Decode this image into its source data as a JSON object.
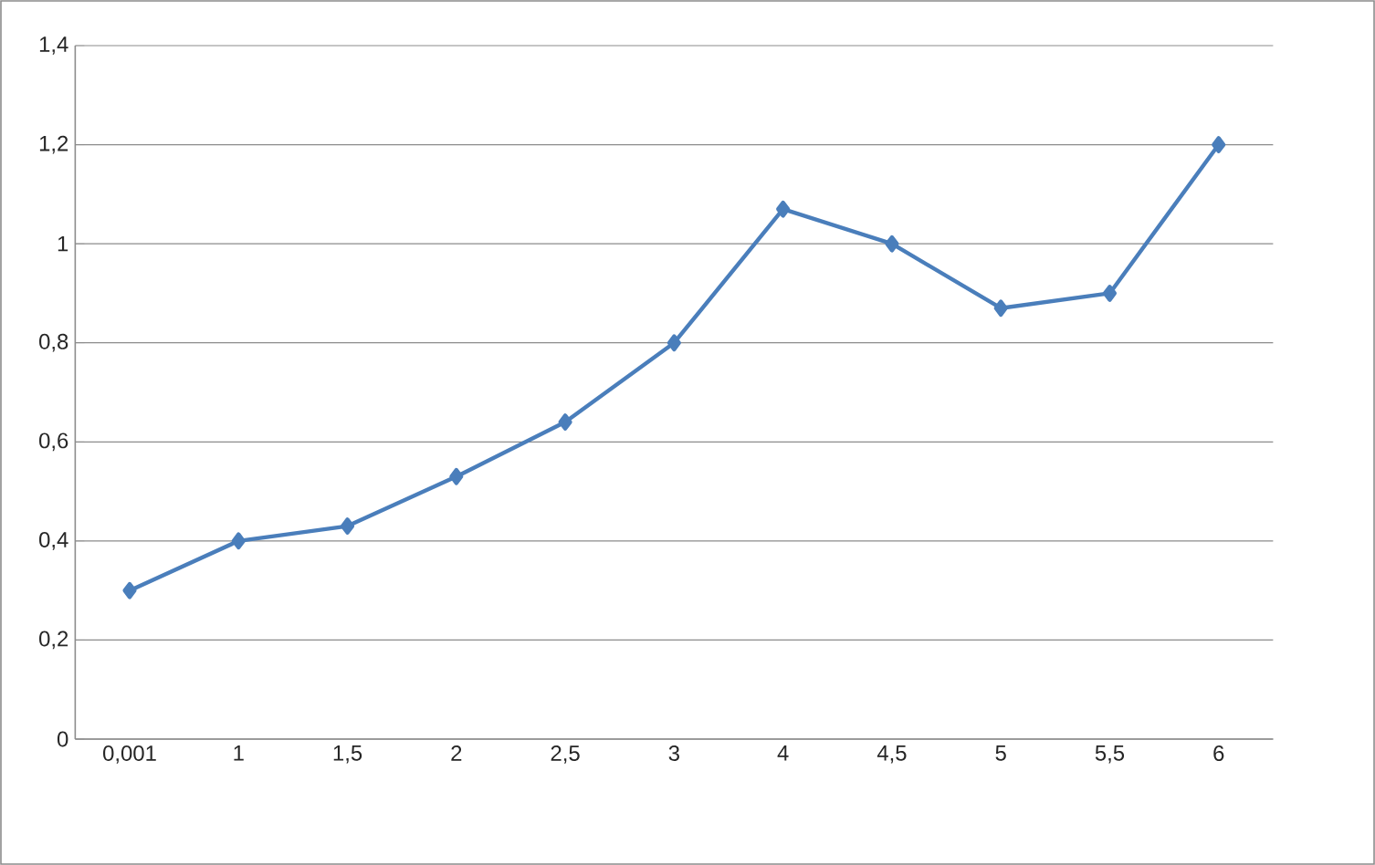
{
  "chart_data": {
    "type": "line",
    "categories": [
      "0,001",
      "1",
      "1,5",
      "2",
      "2,5",
      "3",
      "4",
      "4,5",
      "5",
      "5,5",
      "6"
    ],
    "series": [
      {
        "color": "#4a7ebb",
        "values": [
          0.3,
          0.4,
          0.43,
          0.53,
          0.64,
          0.8,
          1.07,
          1.0,
          0.87,
          0.9,
          1.2
        ]
      }
    ],
    "ylim": [
      0,
      1.4
    ],
    "yticks": [
      0,
      {
        "value": 0.2,
        "label": "0,2"
      },
      {
        "value": 0.4,
        "label": "0,4"
      },
      {
        "value": 0.6,
        "label": "0,6"
      },
      {
        "value": 0.8,
        "label": "0,8"
      },
      1,
      {
        "value": 1.2,
        "label": "1,2"
      },
      {
        "value": 1.4,
        "label": "1,4"
      }
    ],
    "grid": "y",
    "marker": "diamond",
    "line_style": "solid",
    "legend": false
  }
}
